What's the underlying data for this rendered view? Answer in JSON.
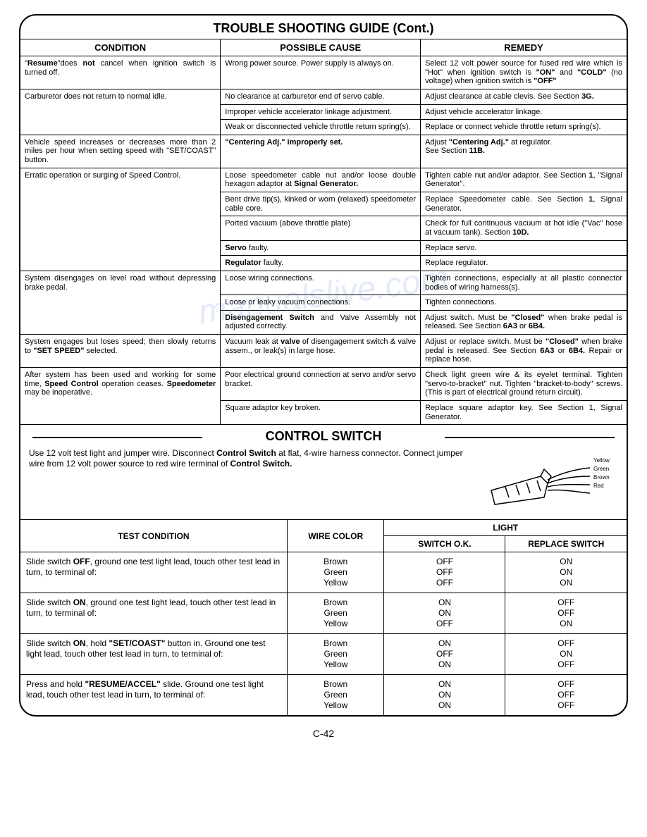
{
  "title": "TROUBLE SHOOTING GUIDE (Cont.)",
  "headers": {
    "condition": "CONDITION",
    "cause": "POSSIBLE CAUSE",
    "remedy": "REMEDY"
  },
  "rows": [
    {
      "cond": "\"<b>Resume</b>\"does <b>not</b> cancel when ignition switch is turned off.",
      "cause": "Wrong power source. Power supply is always on.",
      "remedy": "Select 12 volt power source for fused red wire which is \"Hot\" when ignition switch is <b>\"ON\"</b> and <b>\"COLD\"</b> (no voltage) when ignition switch is <b>\"OFF\"</b>"
    },
    {
      "cond": "Carburetor does not return to normal idle.",
      "condSpan": 3,
      "sub": [
        {
          "cause": "No clearance at carburetor end of servo cable.",
          "remedy": "Adjust clearance at cable clevis. See Section <b>3G.</b>"
        },
        {
          "cause": "Improper vehicle accelerator linkage adjustment.",
          "remedy": "Adjust vehicle accelerator linkage."
        },
        {
          "cause": "Weak or disconnected vehicle throttle return spring(s).",
          "remedy": "Replace or connect vehicle throttle return spring(s)."
        }
      ]
    },
    {
      "cond": "Vehicle speed increases or decreases more than 2 miles per hour when setting speed with \"SET/COAST\" button.",
      "cause": "<b>\"Centering Adj.\" improperly set.</b>",
      "remedy": "Adjust <b>\"Centering Adj.\"</b> at regulator.<br>See Section <b>11B.</b>"
    },
    {
      "cond": "Erratic operation or surging of Speed Control.",
      "condSpan": 5,
      "sub": [
        {
          "cause": "Loose speedometer cable nut and/or loose double hexagon adaptor at <b>Signal Generator.</b>",
          "remedy": "Tighten cable nut and/or adaptor. See Section <b>1</b>, \"Signal Generator\"."
        },
        {
          "cause": "Bent drive tip(s), kinked or worn (relaxed) speedometer cable core.",
          "remedy": "Replace Speedometer cable. See Section <b>1</b>, Signal Generator."
        },
        {
          "cause": "Ported vacuum (above throttle plate)",
          "remedy": "Check for full continuous vacuum at hot idle (\"Vac\" hose at vacuum tank). Section <b>10D.</b>"
        },
        {
          "cause": "<b>Servo</b> faulty.",
          "remedy": "Replace servo."
        },
        {
          "cause": "<b>Regulator</b> faulty.",
          "remedy": "Replace regulator."
        }
      ]
    },
    {
      "cond": "System disengages on level road without depressing brake pedal.",
      "condSpan": 3,
      "sub": [
        {
          "cause": "Loose wiring connections.",
          "remedy": "Tighten connections, especially at all plastic connector bodies of wiring harness(s)."
        },
        {
          "cause": "Loose or leaky vacuum connections.",
          "remedy": "Tighten connections."
        },
        {
          "cause": "<b>Disengagement Switch</b> and Valve Assembly not adjusted correctly.",
          "remedy": "Adjust switch. Must be <b>\"Closed\"</b> when brake pedal is released. See Section <b>6A3</b> or <b>6B4.</b>"
        }
      ]
    },
    {
      "cond": "System engages but loses speed; then slowly returns to <b>\"SET SPEED\"</b> selected.",
      "cause": "Vacuum leak at <b>valve</b> of disengagement switch & valve assem., or leak(s) in large hose.",
      "remedy": "Adjust or replace switch. Must be <b>\"Closed\"</b> when brake pedal is released. See Section <b>6A3</b> or <b>6B4.</b> Repair or replace hose."
    },
    {
      "cond": "After system has been used and working for some time, <b>Speed Control</b> operation ceases. <b>Speedometer</b> may be inoperative.",
      "condSpan": 2,
      "sub": [
        {
          "cause": "Poor electrical ground connection at servo and/or servo bracket.",
          "remedy": "Check light green wire & its eyelet terminal. Tighten \"servo-to-bracket\" nut. Tighten \"bracket-to-body\" screws. (This is part of electrical ground return circuit)."
        },
        {
          "cause": "Square adaptor key broken.",
          "remedy": "Replace square adaptor key. See Section 1, Signal Generator."
        }
      ]
    }
  ],
  "control_switch": {
    "title": "CONTROL SWITCH",
    "intro": "Use 12 volt test light and jumper wire. Disconnect <b>Control Switch</b> at flat, 4-wire harness connector. Connect jumper wire from 12 volt power source to red wire terminal of <b>Control Switch.</b>",
    "wire_labels": [
      "Yellow",
      "Green",
      "Brown",
      "Red"
    ],
    "headers": {
      "light": "LIGHT",
      "test": "TEST CONDITION",
      "wire": "WIRE COLOR",
      "ok": "SWITCH O.K.",
      "replace": "REPLACE SWITCH"
    },
    "rows": [
      {
        "test": "Slide switch <b>OFF</b>, ground one test light lead, touch other test lead in turn, to terminal of:",
        "wires": [
          "Brown",
          "Green",
          "Yellow"
        ],
        "ok": [
          "OFF",
          "OFF",
          "OFF"
        ],
        "rep": [
          "ON",
          "ON",
          "ON"
        ]
      },
      {
        "test": "Slide switch <b>ON</b>, ground one test light lead, touch other test lead in turn, to terminal of:",
        "wires": [
          "Brown",
          "Green",
          "Yellow"
        ],
        "ok": [
          "ON",
          "ON",
          "OFF"
        ],
        "rep": [
          "OFF",
          "OFF",
          "ON"
        ]
      },
      {
        "test": "Slide switch <b>ON</b>, hold <b>\"SET/COAST\"</b> button in. Ground one test light lead, touch other test lead in turn, to terminal of:",
        "wires": [
          "Brown",
          "Green",
          "Yellow"
        ],
        "ok": [
          "ON",
          "OFF",
          "ON"
        ],
        "rep": [
          "OFF",
          "ON",
          "OFF"
        ]
      },
      {
        "test": "Press and hold <b>\"RESUME/ACCEL\"</b> slide. Ground one test light lead, touch other test lead in turn, to terminal of:",
        "wires": [
          "Brown",
          "Green",
          "Yellow"
        ],
        "ok": [
          "ON",
          "ON",
          "ON"
        ],
        "rep": [
          "OFF",
          "OFF",
          "OFF"
        ]
      }
    ]
  },
  "pagenum": "C-42",
  "watermark": "manualslive.com"
}
